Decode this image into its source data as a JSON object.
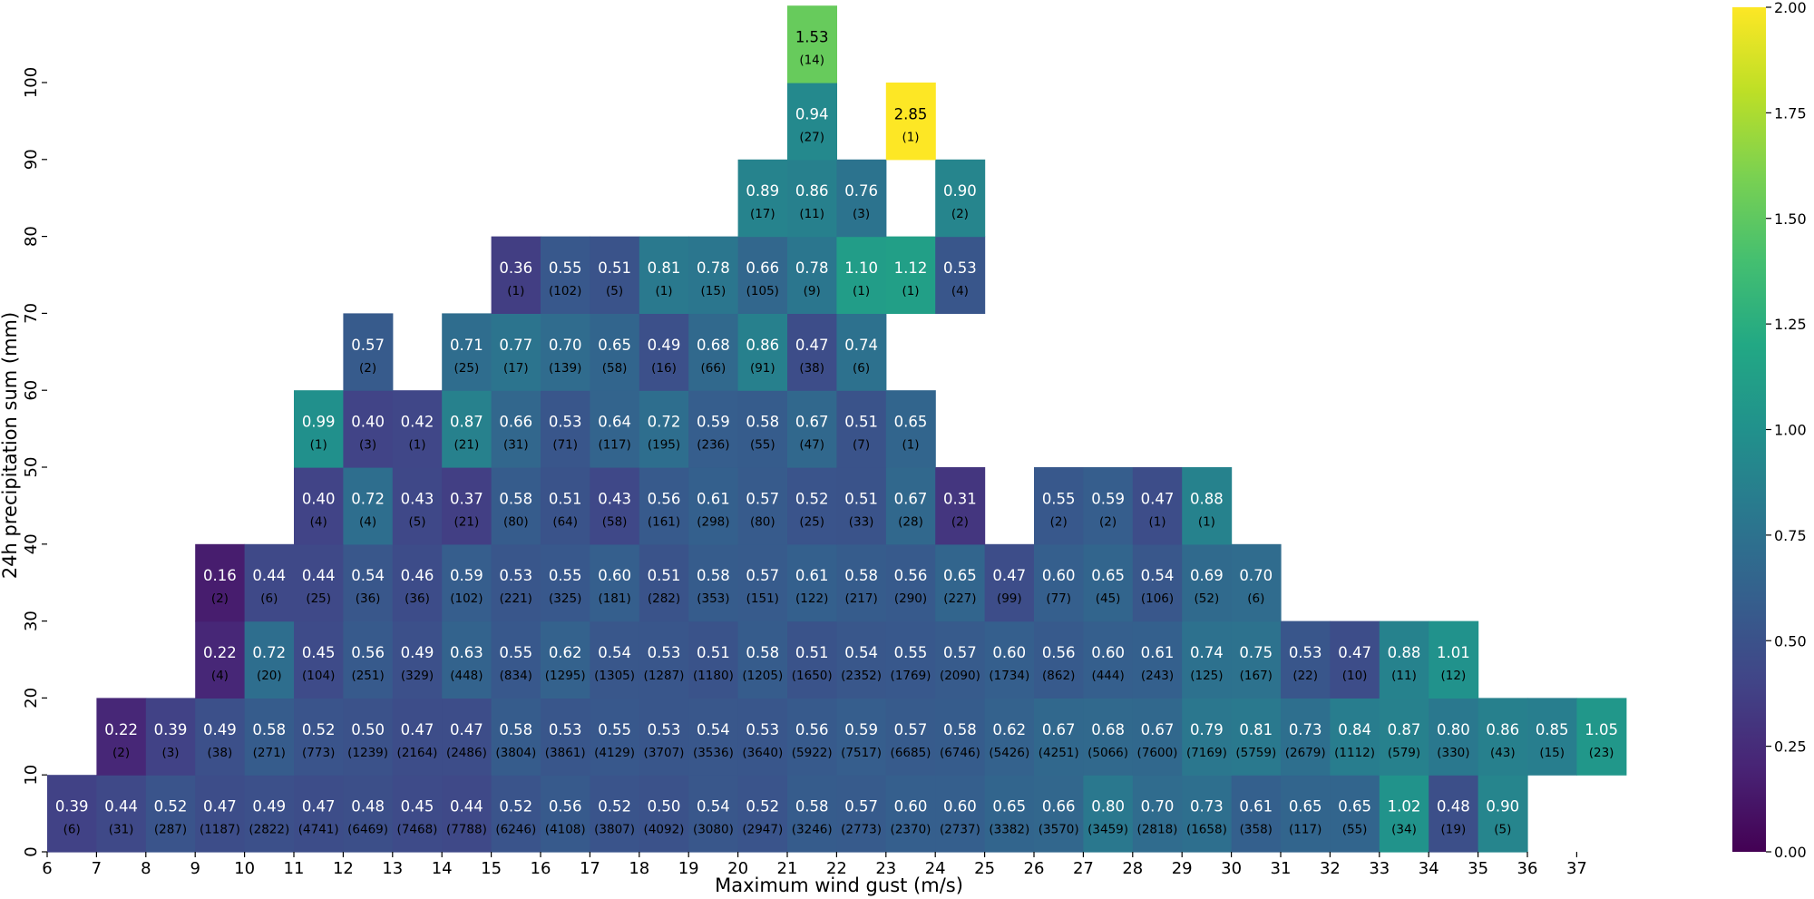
{
  "chart_data": {
    "type": "heatmap",
    "xlabel": "Maximum wind gust (m/s)",
    "ylabel": "24h precipitation sum (mm)",
    "x_ticks": [
      "6",
      "7",
      "8",
      "9",
      "10",
      "11",
      "12",
      "13",
      "14",
      "15",
      "16",
      "17",
      "18",
      "19",
      "20",
      "21",
      "22",
      "23",
      "24",
      "25",
      "26",
      "27",
      "28",
      "29",
      "30",
      "31",
      "32",
      "33",
      "34",
      "35",
      "36",
      "37"
    ],
    "y_ticks": [
      "0",
      "10",
      "20",
      "30",
      "40",
      "50",
      "60",
      "70",
      "80",
      "90",
      "100"
    ],
    "x_bins_start": 6,
    "x_bins_end": 38,
    "y_bins_start": 0,
    "y_bins_end": 110,
    "y_bin_size": 10,
    "colormap": "viridis",
    "colorbar": {
      "min": 0,
      "max": 2,
      "ticks": [
        "0.00",
        "0.25",
        "0.50",
        "0.75",
        "1.00",
        "1.25",
        "1.50",
        "1.75",
        "2.00"
      ]
    },
    "cells": [
      {
        "x": 6,
        "y": 0,
        "v": "0.39",
        "n": "(6)"
      },
      {
        "x": 7,
        "y": 0,
        "v": "0.44",
        "n": "(31)"
      },
      {
        "x": 8,
        "y": 0,
        "v": "0.52",
        "n": "(287)"
      },
      {
        "x": 9,
        "y": 0,
        "v": "0.47",
        "n": "(1187)"
      },
      {
        "x": 10,
        "y": 0,
        "v": "0.49",
        "n": "(2822)"
      },
      {
        "x": 11,
        "y": 0,
        "v": "0.47",
        "n": "(4741)"
      },
      {
        "x": 12,
        "y": 0,
        "v": "0.48",
        "n": "(6469)"
      },
      {
        "x": 13,
        "y": 0,
        "v": "0.45",
        "n": "(7468)"
      },
      {
        "x": 14,
        "y": 0,
        "v": "0.44",
        "n": "(7788)"
      },
      {
        "x": 15,
        "y": 0,
        "v": "0.52",
        "n": "(6246)"
      },
      {
        "x": 16,
        "y": 0,
        "v": "0.56",
        "n": "(4108)"
      },
      {
        "x": 17,
        "y": 0,
        "v": "0.52",
        "n": "(3807)"
      },
      {
        "x": 18,
        "y": 0,
        "v": "0.50",
        "n": "(4092)"
      },
      {
        "x": 19,
        "y": 0,
        "v": "0.54",
        "n": "(3080)"
      },
      {
        "x": 20,
        "y": 0,
        "v": "0.52",
        "n": "(2947)"
      },
      {
        "x": 21,
        "y": 0,
        "v": "0.58",
        "n": "(3246)"
      },
      {
        "x": 22,
        "y": 0,
        "v": "0.57",
        "n": "(2773)"
      },
      {
        "x": 23,
        "y": 0,
        "v": "0.60",
        "n": "(2370)"
      },
      {
        "x": 24,
        "y": 0,
        "v": "0.60",
        "n": "(2737)"
      },
      {
        "x": 25,
        "y": 0,
        "v": "0.65",
        "n": "(3382)"
      },
      {
        "x": 26,
        "y": 0,
        "v": "0.66",
        "n": "(3570)"
      },
      {
        "x": 27,
        "y": 0,
        "v": "0.80",
        "n": "(3459)"
      },
      {
        "x": 28,
        "y": 0,
        "v": "0.70",
        "n": "(2818)"
      },
      {
        "x": 29,
        "y": 0,
        "v": "0.73",
        "n": "(1658)"
      },
      {
        "x": 30,
        "y": 0,
        "v": "0.61",
        "n": "(358)"
      },
      {
        "x": 31,
        "y": 0,
        "v": "0.65",
        "n": "(117)"
      },
      {
        "x": 32,
        "y": 0,
        "v": "0.65",
        "n": "(55)"
      },
      {
        "x": 33,
        "y": 0,
        "v": "1.02",
        "n": "(34)"
      },
      {
        "x": 34,
        "y": 0,
        "v": "0.48",
        "n": "(19)"
      },
      {
        "x": 35,
        "y": 0,
        "v": "0.90",
        "n": "(5)"
      },
      {
        "x": 7,
        "y": 10,
        "v": "0.22",
        "n": "(2)"
      },
      {
        "x": 8,
        "y": 10,
        "v": "0.39",
        "n": "(3)"
      },
      {
        "x": 9,
        "y": 10,
        "v": "0.49",
        "n": "(38)"
      },
      {
        "x": 10,
        "y": 10,
        "v": "0.58",
        "n": "(271)"
      },
      {
        "x": 11,
        "y": 10,
        "v": "0.52",
        "n": "(773)"
      },
      {
        "x": 12,
        "y": 10,
        "v": "0.50",
        "n": "(1239)"
      },
      {
        "x": 13,
        "y": 10,
        "v": "0.47",
        "n": "(2164)"
      },
      {
        "x": 14,
        "y": 10,
        "v": "0.47",
        "n": "(2486)"
      },
      {
        "x": 15,
        "y": 10,
        "v": "0.58",
        "n": "(3804)"
      },
      {
        "x": 16,
        "y": 10,
        "v": "0.53",
        "n": "(3861)"
      },
      {
        "x": 17,
        "y": 10,
        "v": "0.55",
        "n": "(4129)"
      },
      {
        "x": 18,
        "y": 10,
        "v": "0.53",
        "n": "(3707)"
      },
      {
        "x": 19,
        "y": 10,
        "v": "0.54",
        "n": "(3536)"
      },
      {
        "x": 20,
        "y": 10,
        "v": "0.53",
        "n": "(3640)"
      },
      {
        "x": 21,
        "y": 10,
        "v": "0.56",
        "n": "(5922)"
      },
      {
        "x": 22,
        "y": 10,
        "v": "0.59",
        "n": "(7517)"
      },
      {
        "x": 23,
        "y": 10,
        "v": "0.57",
        "n": "(6685)"
      },
      {
        "x": 24,
        "y": 10,
        "v": "0.58",
        "n": "(6746)"
      },
      {
        "x": 25,
        "y": 10,
        "v": "0.62",
        "n": "(5426)"
      },
      {
        "x": 26,
        "y": 10,
        "v": "0.67",
        "n": "(4251)"
      },
      {
        "x": 27,
        "y": 10,
        "v": "0.68",
        "n": "(5066)"
      },
      {
        "x": 28,
        "y": 10,
        "v": "0.67",
        "n": "(7600)"
      },
      {
        "x": 29,
        "y": 10,
        "v": "0.79",
        "n": "(7169)"
      },
      {
        "x": 30,
        "y": 10,
        "v": "0.81",
        "n": "(5759)"
      },
      {
        "x": 31,
        "y": 10,
        "v": "0.73",
        "n": "(2679)"
      },
      {
        "x": 32,
        "y": 10,
        "v": "0.84",
        "n": "(1112)"
      },
      {
        "x": 33,
        "y": 10,
        "v": "0.87",
        "n": "(579)"
      },
      {
        "x": 34,
        "y": 10,
        "v": "0.80",
        "n": "(330)"
      },
      {
        "x": 35,
        "y": 10,
        "v": "0.86",
        "n": "(43)"
      },
      {
        "x": 36,
        "y": 10,
        "v": "0.85",
        "n": "(15)"
      },
      {
        "x": 37,
        "y": 10,
        "v": "1.05",
        "n": "(23)"
      },
      {
        "x": 9,
        "y": 20,
        "v": "0.22",
        "n": "(4)"
      },
      {
        "x": 10,
        "y": 20,
        "v": "0.72",
        "n": "(20)"
      },
      {
        "x": 11,
        "y": 20,
        "v": "0.45",
        "n": "(104)"
      },
      {
        "x": 12,
        "y": 20,
        "v": "0.56",
        "n": "(251)"
      },
      {
        "x": 13,
        "y": 20,
        "v": "0.49",
        "n": "(329)"
      },
      {
        "x": 14,
        "y": 20,
        "v": "0.63",
        "n": "(448)"
      },
      {
        "x": 15,
        "y": 20,
        "v": "0.55",
        "n": "(834)"
      },
      {
        "x": 16,
        "y": 20,
        "v": "0.62",
        "n": "(1295)"
      },
      {
        "x": 17,
        "y": 20,
        "v": "0.54",
        "n": "(1305)"
      },
      {
        "x": 18,
        "y": 20,
        "v": "0.53",
        "n": "(1287)"
      },
      {
        "x": 19,
        "y": 20,
        "v": "0.51",
        "n": "(1180)"
      },
      {
        "x": 20,
        "y": 20,
        "v": "0.58",
        "n": "(1205)"
      },
      {
        "x": 21,
        "y": 20,
        "v": "0.51",
        "n": "(1650)"
      },
      {
        "x": 22,
        "y": 20,
        "v": "0.54",
        "n": "(2352)"
      },
      {
        "x": 23,
        "y": 20,
        "v": "0.55",
        "n": "(1769)"
      },
      {
        "x": 24,
        "y": 20,
        "v": "0.57",
        "n": "(2090)"
      },
      {
        "x": 25,
        "y": 20,
        "v": "0.60",
        "n": "(1734)"
      },
      {
        "x": 26,
        "y": 20,
        "v": "0.56",
        "n": "(862)"
      },
      {
        "x": 27,
        "y": 20,
        "v": "0.60",
        "n": "(444)"
      },
      {
        "x": 28,
        "y": 20,
        "v": "0.61",
        "n": "(243)"
      },
      {
        "x": 29,
        "y": 20,
        "v": "0.74",
        "n": "(125)"
      },
      {
        "x": 30,
        "y": 20,
        "v": "0.75",
        "n": "(167)"
      },
      {
        "x": 31,
        "y": 20,
        "v": "0.53",
        "n": "(22)"
      },
      {
        "x": 32,
        "y": 20,
        "v": "0.47",
        "n": "(10)"
      },
      {
        "x": 33,
        "y": 20,
        "v": "0.88",
        "n": "(11)"
      },
      {
        "x": 34,
        "y": 20,
        "v": "1.01",
        "n": "(12)"
      },
      {
        "x": 9,
        "y": 30,
        "v": "0.16",
        "n": "(2)"
      },
      {
        "x": 10,
        "y": 30,
        "v": "0.44",
        "n": "(6)"
      },
      {
        "x": 11,
        "y": 30,
        "v": "0.44",
        "n": "(25)"
      },
      {
        "x": 12,
        "y": 30,
        "v": "0.54",
        "n": "(36)"
      },
      {
        "x": 13,
        "y": 30,
        "v": "0.46",
        "n": "(36)"
      },
      {
        "x": 14,
        "y": 30,
        "v": "0.59",
        "n": "(102)"
      },
      {
        "x": 15,
        "y": 30,
        "v": "0.53",
        "n": "(221)"
      },
      {
        "x": 16,
        "y": 30,
        "v": "0.55",
        "n": "(325)"
      },
      {
        "x": 17,
        "y": 30,
        "v": "0.60",
        "n": "(181)"
      },
      {
        "x": 18,
        "y": 30,
        "v": "0.51",
        "n": "(282)"
      },
      {
        "x": 19,
        "y": 30,
        "v": "0.58",
        "n": "(353)"
      },
      {
        "x": 20,
        "y": 30,
        "v": "0.57",
        "n": "(151)"
      },
      {
        "x": 21,
        "y": 30,
        "v": "0.61",
        "n": "(122)"
      },
      {
        "x": 22,
        "y": 30,
        "v": "0.58",
        "n": "(217)"
      },
      {
        "x": 23,
        "y": 30,
        "v": "0.56",
        "n": "(290)"
      },
      {
        "x": 24,
        "y": 30,
        "v": "0.65",
        "n": "(227)"
      },
      {
        "x": 25,
        "y": 30,
        "v": "0.47",
        "n": "(99)"
      },
      {
        "x": 26,
        "y": 30,
        "v": "0.60",
        "n": "(77)"
      },
      {
        "x": 27,
        "y": 30,
        "v": "0.65",
        "n": "(45)"
      },
      {
        "x": 28,
        "y": 30,
        "v": "0.54",
        "n": "(106)"
      },
      {
        "x": 29,
        "y": 30,
        "v": "0.69",
        "n": "(52)"
      },
      {
        "x": 30,
        "y": 30,
        "v": "0.70",
        "n": "(6)"
      },
      {
        "x": 11,
        "y": 40,
        "v": "0.40",
        "n": "(4)"
      },
      {
        "x": 12,
        "y": 40,
        "v": "0.72",
        "n": "(4)"
      },
      {
        "x": 13,
        "y": 40,
        "v": "0.43",
        "n": "(5)"
      },
      {
        "x": 14,
        "y": 40,
        "v": "0.37",
        "n": "(21)"
      },
      {
        "x": 15,
        "y": 40,
        "v": "0.58",
        "n": "(80)"
      },
      {
        "x": 16,
        "y": 40,
        "v": "0.51",
        "n": "(64)"
      },
      {
        "x": 17,
        "y": 40,
        "v": "0.43",
        "n": "(58)"
      },
      {
        "x": 18,
        "y": 40,
        "v": "0.56",
        "n": "(161)"
      },
      {
        "x": 19,
        "y": 40,
        "v": "0.61",
        "n": "(298)"
      },
      {
        "x": 20,
        "y": 40,
        "v": "0.57",
        "n": "(80)"
      },
      {
        "x": 21,
        "y": 40,
        "v": "0.52",
        "n": "(25)"
      },
      {
        "x": 22,
        "y": 40,
        "v": "0.51",
        "n": "(33)"
      },
      {
        "x": 23,
        "y": 40,
        "v": "0.67",
        "n": "(28)"
      },
      {
        "x": 24,
        "y": 40,
        "v": "0.31",
        "n": "(2)"
      },
      {
        "x": 26,
        "y": 40,
        "v": "0.55",
        "n": "(2)"
      },
      {
        "x": 27,
        "y": 40,
        "v": "0.59",
        "n": "(2)"
      },
      {
        "x": 28,
        "y": 40,
        "v": "0.47",
        "n": "(1)"
      },
      {
        "x": 29,
        "y": 40,
        "v": "0.88",
        "n": "(1)"
      },
      {
        "x": 11,
        "y": 50,
        "v": "0.99",
        "n": "(1)"
      },
      {
        "x": 12,
        "y": 50,
        "v": "0.40",
        "n": "(3)"
      },
      {
        "x": 13,
        "y": 50,
        "v": "0.42",
        "n": "(1)"
      },
      {
        "x": 14,
        "y": 50,
        "v": "0.87",
        "n": "(21)"
      },
      {
        "x": 15,
        "y": 50,
        "v": "0.66",
        "n": "(31)"
      },
      {
        "x": 16,
        "y": 50,
        "v": "0.53",
        "n": "(71)"
      },
      {
        "x": 17,
        "y": 50,
        "v": "0.64",
        "n": "(117)"
      },
      {
        "x": 18,
        "y": 50,
        "v": "0.72",
        "n": "(195)"
      },
      {
        "x": 19,
        "y": 50,
        "v": "0.59",
        "n": "(236)"
      },
      {
        "x": 20,
        "y": 50,
        "v": "0.58",
        "n": "(55)"
      },
      {
        "x": 21,
        "y": 50,
        "v": "0.67",
        "n": "(47)"
      },
      {
        "x": 22,
        "y": 50,
        "v": "0.51",
        "n": "(7)"
      },
      {
        "x": 23,
        "y": 50,
        "v": "0.65",
        "n": "(1)"
      },
      {
        "x": 12,
        "y": 60,
        "v": "0.57",
        "n": "(2)"
      },
      {
        "x": 14,
        "y": 60,
        "v": "0.71",
        "n": "(25)"
      },
      {
        "x": 15,
        "y": 60,
        "v": "0.77",
        "n": "(17)"
      },
      {
        "x": 16,
        "y": 60,
        "v": "0.70",
        "n": "(139)"
      },
      {
        "x": 17,
        "y": 60,
        "v": "0.65",
        "n": "(58)"
      },
      {
        "x": 18,
        "y": 60,
        "v": "0.49",
        "n": "(16)"
      },
      {
        "x": 19,
        "y": 60,
        "v": "0.68",
        "n": "(66)"
      },
      {
        "x": 20,
        "y": 60,
        "v": "0.86",
        "n": "(91)"
      },
      {
        "x": 21,
        "y": 60,
        "v": "0.47",
        "n": "(38)"
      },
      {
        "x": 22,
        "y": 60,
        "v": "0.74",
        "n": "(6)"
      },
      {
        "x": 15,
        "y": 70,
        "v": "0.36",
        "n": "(1)"
      },
      {
        "x": 16,
        "y": 70,
        "v": "0.55",
        "n": "(102)"
      },
      {
        "x": 17,
        "y": 70,
        "v": "0.51",
        "n": "(5)"
      },
      {
        "x": 18,
        "y": 70,
        "v": "0.81",
        "n": "(1)"
      },
      {
        "x": 19,
        "y": 70,
        "v": "0.78",
        "n": "(15)"
      },
      {
        "x": 20,
        "y": 70,
        "v": "0.66",
        "n": "(105)"
      },
      {
        "x": 21,
        "y": 70,
        "v": "0.78",
        "n": "(9)"
      },
      {
        "x": 22,
        "y": 70,
        "v": "1.10",
        "n": "(1)"
      },
      {
        "x": 23,
        "y": 70,
        "v": "1.12",
        "n": "(1)"
      },
      {
        "x": 24,
        "y": 70,
        "v": "0.53",
        "n": "(4)"
      },
      {
        "x": 20,
        "y": 80,
        "v": "0.89",
        "n": "(17)"
      },
      {
        "x": 21,
        "y": 80,
        "v": "0.86",
        "n": "(11)"
      },
      {
        "x": 22,
        "y": 80,
        "v": "0.76",
        "n": "(3)"
      },
      {
        "x": 24,
        "y": 80,
        "v": "0.90",
        "n": "(2)"
      },
      {
        "x": 21,
        "y": 90,
        "v": "0.94",
        "n": "(27)"
      },
      {
        "x": 23,
        "y": 90,
        "v": "2.85",
        "n": "(1)"
      },
      {
        "x": 21,
        "y": 100,
        "v": "1.53",
        "n": "(14)"
      }
    ]
  }
}
